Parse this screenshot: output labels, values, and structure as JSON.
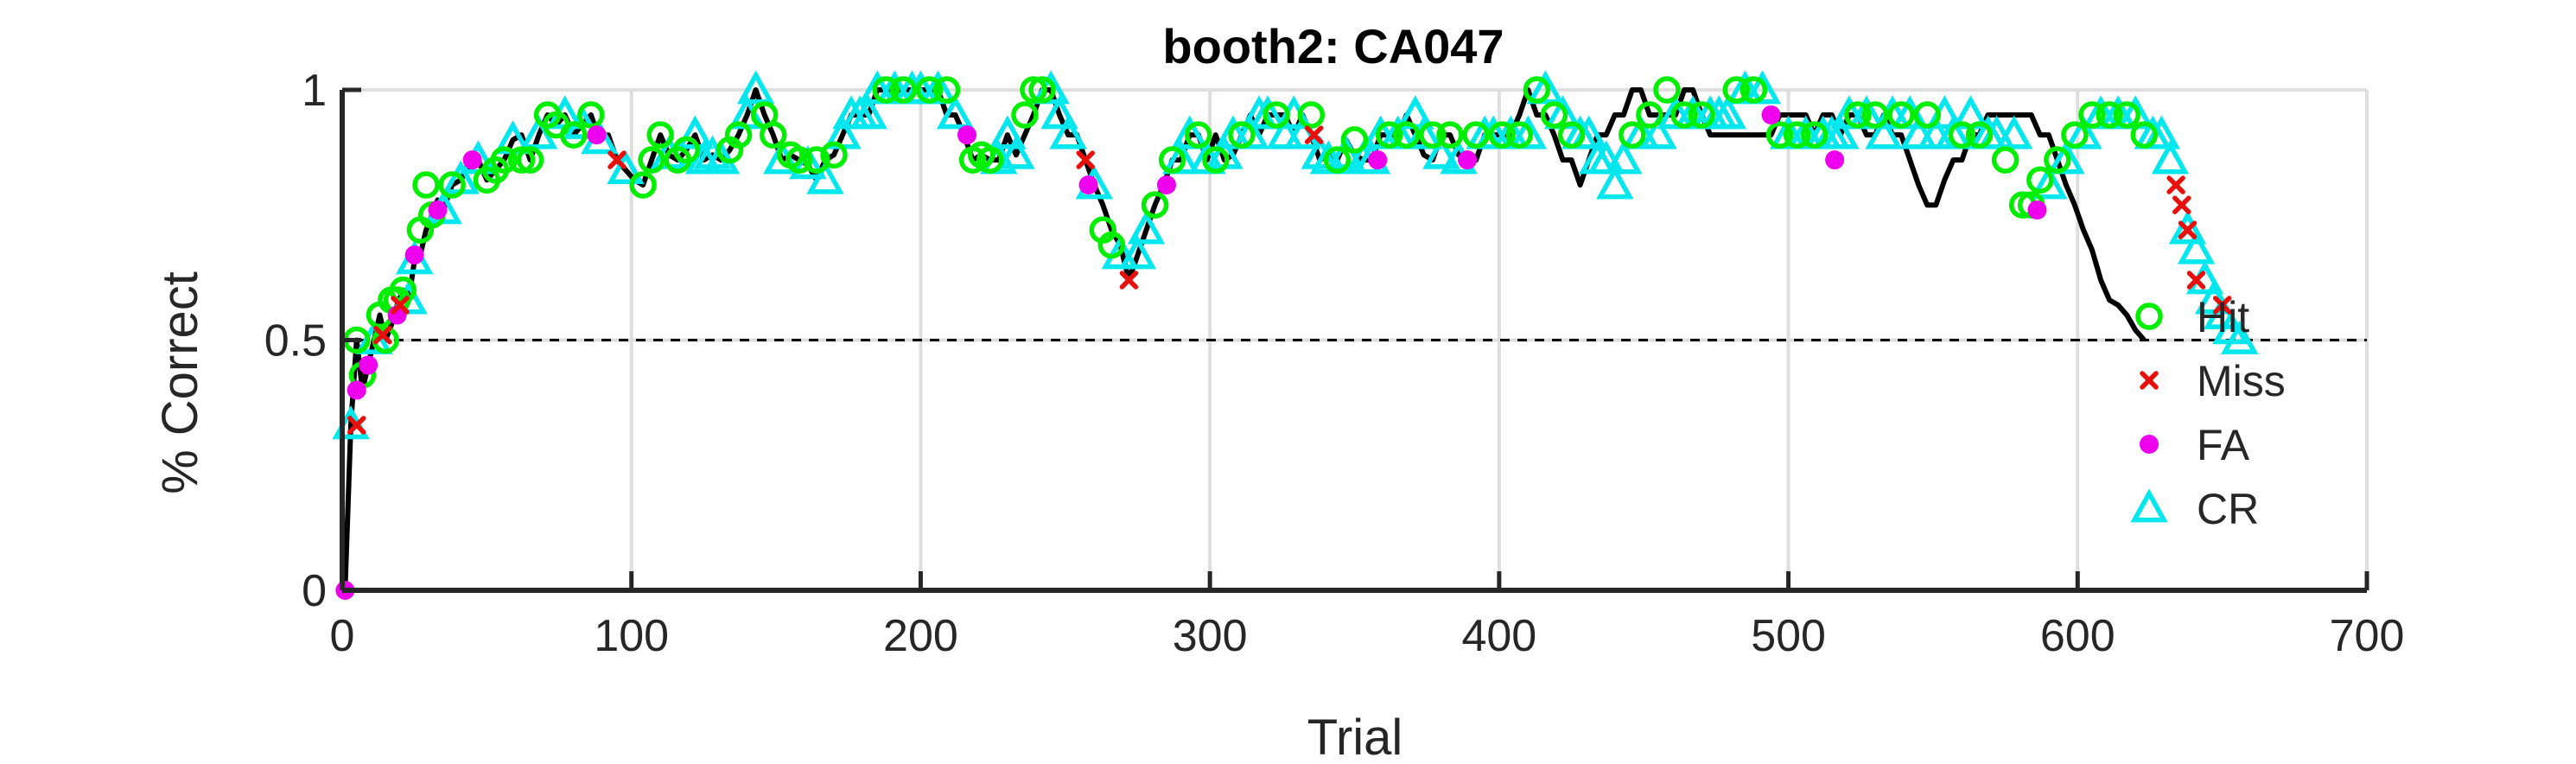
{
  "chart_data": {
    "type": "line",
    "title": "booth2: CA047",
    "xlabel": "Trial",
    "ylabel": "% Correct",
    "xlim": [
      0,
      700
    ],
    "ylim": [
      0,
      1
    ],
    "xticks": [
      0,
      100,
      200,
      300,
      400,
      500,
      600,
      700
    ],
    "yticks": [
      0,
      0.5,
      1
    ],
    "xtick_labels": [
      "0",
      "100",
      "200",
      "300",
      "400",
      "500",
      "600",
      "700"
    ],
    "ytick_labels": [
      "0",
      "0.5",
      "1"
    ],
    "grid": true,
    "reference_line": {
      "y": 0.5,
      "style": "dashed"
    },
    "legend": {
      "placement": "right",
      "entries": [
        "Hit",
        "Miss",
        "FA",
        "CR"
      ]
    },
    "colors": {
      "line": "#000000",
      "Hit": "#00ee00",
      "Miss": "#e8100c",
      "FA": "#ee00ee",
      "CR": "#00e8ee"
    },
    "line_x": [
      1,
      3,
      5,
      7,
      9,
      11,
      13,
      15,
      17,
      19,
      21,
      23,
      25,
      27,
      29,
      31,
      33,
      35,
      38,
      41,
      44,
      47,
      50,
      53,
      56,
      59,
      62,
      65,
      68,
      71,
      74,
      77,
      80,
      83,
      86,
      89,
      92,
      95,
      98,
      101,
      104,
      107,
      110,
      113,
      116,
      119,
      122,
      125,
      128,
      131,
      134,
      137,
      140,
      143,
      146,
      149,
      152,
      155,
      158,
      161,
      164,
      167,
      170,
      173,
      176,
      179,
      182,
      185,
      188,
      191,
      194,
      197,
      200,
      203,
      206,
      209,
      212,
      215,
      218,
      221,
      224,
      227,
      230,
      233,
      236,
      239,
      242,
      245,
      248,
      251,
      254,
      257,
      260,
      263,
      266,
      269,
      272,
      275,
      278,
      281,
      284,
      287,
      290,
      293,
      296,
      299,
      302,
      305,
      308,
      311,
      314,
      317,
      320,
      323,
      326,
      329,
      332,
      335,
      338,
      341,
      344,
      347,
      350,
      353,
      356,
      359,
      362,
      365,
      368,
      371,
      374,
      377,
      380,
      383,
      386,
      389,
      392,
      395,
      398,
      401,
      404,
      407,
      410,
      413,
      416,
      419,
      422,
      425,
      428,
      431,
      434,
      437,
      440,
      443,
      446,
      449,
      452,
      455,
      458,
      461,
      464,
      467,
      470,
      473,
      476,
      479,
      482,
      485,
      488,
      491,
      494,
      497,
      500,
      503,
      506,
      509,
      512,
      515,
      518,
      521,
      524,
      527,
      530,
      533,
      536,
      539,
      542,
      545,
      548,
      551,
      554,
      557,
      560,
      563,
      566,
      569,
      572,
      575,
      578,
      581,
      584,
      587,
      590,
      593,
      596,
      599,
      602,
      605,
      608,
      611,
      614,
      617,
      620,
      623,
      626,
      629,
      632,
      635,
      638,
      641,
      644,
      647,
      650,
      653,
      656
    ],
    "line_y": [
      0.0,
      0.33,
      0.5,
      0.4,
      0.45,
      0.5,
      0.55,
      0.5,
      0.53,
      0.57,
      0.6,
      0.58,
      0.66,
      0.67,
      0.72,
      0.75,
      0.78,
      0.76,
      0.81,
      0.82,
      0.85,
      0.86,
      0.82,
      0.84,
      0.86,
      0.9,
      0.91,
      0.86,
      0.91,
      0.95,
      0.93,
      0.95,
      0.91,
      0.93,
      0.95,
      0.9,
      0.91,
      0.86,
      0.84,
      0.82,
      0.81,
      0.86,
      0.91,
      0.87,
      0.86,
      0.88,
      0.91,
      0.86,
      0.87,
      0.86,
      0.88,
      0.91,
      0.95,
      1.0,
      0.95,
      0.91,
      0.86,
      0.87,
      0.86,
      0.85,
      0.82,
      0.86,
      0.87,
      0.91,
      0.95,
      0.95,
      0.95,
      1.0,
      1.0,
      1.0,
      1.0,
      1.0,
      1.0,
      1.0,
      1.0,
      0.95,
      0.95,
      0.91,
      0.86,
      0.87,
      0.86,
      0.86,
      0.91,
      0.87,
      0.91,
      0.95,
      1.0,
      1.0,
      0.95,
      0.91,
      0.91,
      0.86,
      0.81,
      0.77,
      0.72,
      0.69,
      0.62,
      0.67,
      0.72,
      0.77,
      0.81,
      0.86,
      0.86,
      0.91,
      0.91,
      0.86,
      0.91,
      0.86,
      0.87,
      0.91,
      0.95,
      0.91,
      0.95,
      0.95,
      0.95,
      0.91,
      0.95,
      0.91,
      0.86,
      0.87,
      0.86,
      0.9,
      0.87,
      0.86,
      0.86,
      0.91,
      0.91,
      0.91,
      0.95,
      0.91,
      0.87,
      0.86,
      0.91,
      0.91,
      0.87,
      0.86,
      0.86,
      0.91,
      0.91,
      0.91,
      0.91,
      0.95,
      1.0,
      0.95,
      0.95,
      0.91,
      0.86,
      0.86,
      0.81,
      0.86,
      0.91,
      0.91,
      0.95,
      0.95,
      1.0,
      1.0,
      0.95,
      0.95,
      0.95,
      0.95,
      1.0,
      1.0,
      0.95,
      0.91,
      0.91,
      0.91,
      0.91,
      0.91,
      0.91,
      0.91,
      0.91,
      0.95,
      0.95,
      0.95,
      0.95,
      0.91,
      0.95,
      0.95,
      0.91,
      0.95,
      0.95,
      0.91,
      0.91,
      0.95,
      0.91,
      0.91,
      0.86,
      0.81,
      0.77,
      0.77,
      0.82,
      0.86,
      0.86,
      0.91,
      0.91,
      0.95,
      0.95,
      0.95,
      0.95,
      0.95,
      0.95,
      0.91,
      0.91,
      0.86,
      0.81,
      0.77,
      0.72,
      0.68,
      0.62,
      0.58,
      0.57,
      0.55,
      0.52,
      0.5
    ],
    "series": [
      {
        "name": "Hit",
        "marker": "circle",
        "x": [
          5,
          7,
          13,
          15,
          17,
          19,
          21,
          27,
          29,
          31,
          38,
          50,
          53,
          56,
          62,
          65,
          71,
          74,
          80,
          86,
          104,
          107,
          110,
          116,
          119,
          134,
          137,
          146,
          149,
          155,
          158,
          164,
          170,
          188,
          194,
          203,
          209,
          218,
          221,
          224,
          236,
          239,
          242,
          263,
          266,
          281,
          287,
          296,
          302,
          311,
          323,
          335,
          344,
          350,
          362,
          368,
          377,
          383,
          392,
          401,
          407,
          413,
          419,
          425,
          446,
          452,
          458,
          464,
          470,
          482,
          488,
          497,
          503,
          509,
          524,
          530,
          539,
          548,
          560,
          566,
          575,
          581,
          584,
          587,
          593,
          599,
          605,
          611,
          617,
          623
        ],
        "y": [
          0.5,
          0.43,
          0.55,
          0.5,
          0.58,
          0.58,
          0.6,
          0.72,
          0.81,
          0.75,
          0.81,
          0.82,
          0.84,
          0.86,
          0.86,
          0.86,
          0.95,
          0.93,
          0.91,
          0.95,
          0.81,
          0.86,
          0.91,
          0.86,
          0.88,
          0.88,
          0.91,
          0.95,
          0.91,
          0.87,
          0.86,
          0.86,
          0.87,
          1.0,
          1.0,
          1.0,
          1.0,
          0.86,
          0.87,
          0.86,
          0.95,
          1.0,
          1.0,
          0.72,
          0.69,
          0.77,
          0.86,
          0.91,
          0.86,
          0.91,
          0.95,
          0.95,
          0.86,
          0.9,
          0.91,
          0.91,
          0.91,
          0.91,
          0.91,
          0.91,
          0.91,
          1.0,
          0.95,
          0.91,
          0.91,
          0.95,
          1.0,
          0.95,
          0.95,
          1.0,
          1.0,
          0.91,
          0.91,
          0.91,
          0.95,
          0.95,
          0.95,
          0.95,
          0.91,
          0.91,
          0.86,
          0.77,
          0.77,
          0.82,
          0.86,
          0.91,
          0.95,
          0.95,
          0.95,
          0.91
        ]
      },
      {
        "name": "Miss",
        "marker": "x",
        "x": [
          5,
          14,
          20,
          95,
          257,
          272,
          336,
          634,
          636,
          638,
          641,
          650
        ],
        "y": [
          0.33,
          0.51,
          0.57,
          0.86,
          0.86,
          0.62,
          0.91,
          0.81,
          0.77,
          0.72,
          0.62,
          0.57
        ]
      },
      {
        "name": "FA",
        "marker": "dot",
        "x": [
          1,
          5,
          9,
          19,
          25,
          33,
          45,
          88,
          216,
          258,
          285,
          358,
          389,
          494,
          516,
          586
        ],
        "y": [
          0.0,
          0.4,
          0.45,
          0.55,
          0.67,
          0.76,
          0.86,
          0.91,
          0.91,
          0.81,
          0.81,
          0.86,
          0.86,
          0.95,
          0.86,
          0.76
        ]
      },
      {
        "name": "CR",
        "marker": "triangle",
        "x": [
          3,
          11,
          23,
          25,
          35,
          41,
          47,
          59,
          68,
          77,
          83,
          89,
          98,
          113,
          122,
          125,
          128,
          131,
          140,
          143,
          152,
          161,
          167,
          173,
          176,
          179,
          182,
          185,
          191,
          197,
          200,
          206,
          212,
          227,
          230,
          233,
          245,
          248,
          251,
          260,
          269,
          275,
          278,
          290,
          293,
          299,
          305,
          308,
          314,
          317,
          320,
          326,
          329,
          332,
          338,
          341,
          347,
          353,
          356,
          359,
          365,
          371,
          374,
          380,
          386,
          395,
          398,
          404,
          410,
          416,
          422,
          428,
          431,
          434,
          437,
          440,
          443,
          449,
          455,
          461,
          467,
          473,
          476,
          479,
          485,
          491,
          500,
          506,
          512,
          515,
          518,
          521,
          527,
          533,
          536,
          542,
          545,
          551,
          554,
          557,
          563,
          569,
          572,
          578,
          590,
          596,
          602,
          608,
          614,
          620,
          626,
          629,
          632,
          638,
          641,
          644,
          647,
          650,
          653,
          656
        ],
        "y": [
          0.33,
          0.5,
          0.58,
          0.66,
          0.76,
          0.82,
          0.86,
          0.9,
          0.91,
          0.95,
          0.93,
          0.9,
          0.84,
          0.87,
          0.91,
          0.86,
          0.87,
          0.86,
          0.95,
          1.0,
          0.86,
          0.85,
          0.82,
          0.91,
          0.95,
          0.95,
          0.95,
          1.0,
          1.0,
          1.0,
          1.0,
          1.0,
          0.95,
          0.86,
          0.91,
          0.87,
          1.0,
          0.95,
          0.91,
          0.81,
          0.67,
          0.67,
          0.72,
          0.86,
          0.91,
          0.86,
          0.87,
          0.91,
          0.91,
          0.95,
          0.95,
          0.91,
          0.95,
          0.91,
          0.87,
          0.86,
          0.87,
          0.86,
          0.86,
          0.91,
          0.91,
          0.95,
          0.91,
          0.87,
          0.86,
          0.91,
          0.91,
          0.91,
          0.91,
          1.0,
          0.95,
          0.91,
          0.91,
          0.86,
          0.86,
          0.81,
          0.86,
          0.91,
          0.91,
          0.95,
          0.95,
          0.95,
          0.95,
          0.95,
          1.0,
          1.0,
          0.91,
          0.91,
          0.91,
          0.91,
          0.91,
          0.95,
          0.95,
          0.91,
          0.95,
          0.95,
          0.91,
          0.91,
          0.95,
          0.91,
          0.95,
          0.91,
          0.91,
          0.91,
          0.81,
          0.86,
          0.91,
          0.95,
          0.95,
          0.95,
          0.91,
          0.91,
          0.86,
          0.72,
          0.68,
          0.62,
          0.58,
          0.55,
          0.52,
          0.5
        ]
      }
    ]
  }
}
